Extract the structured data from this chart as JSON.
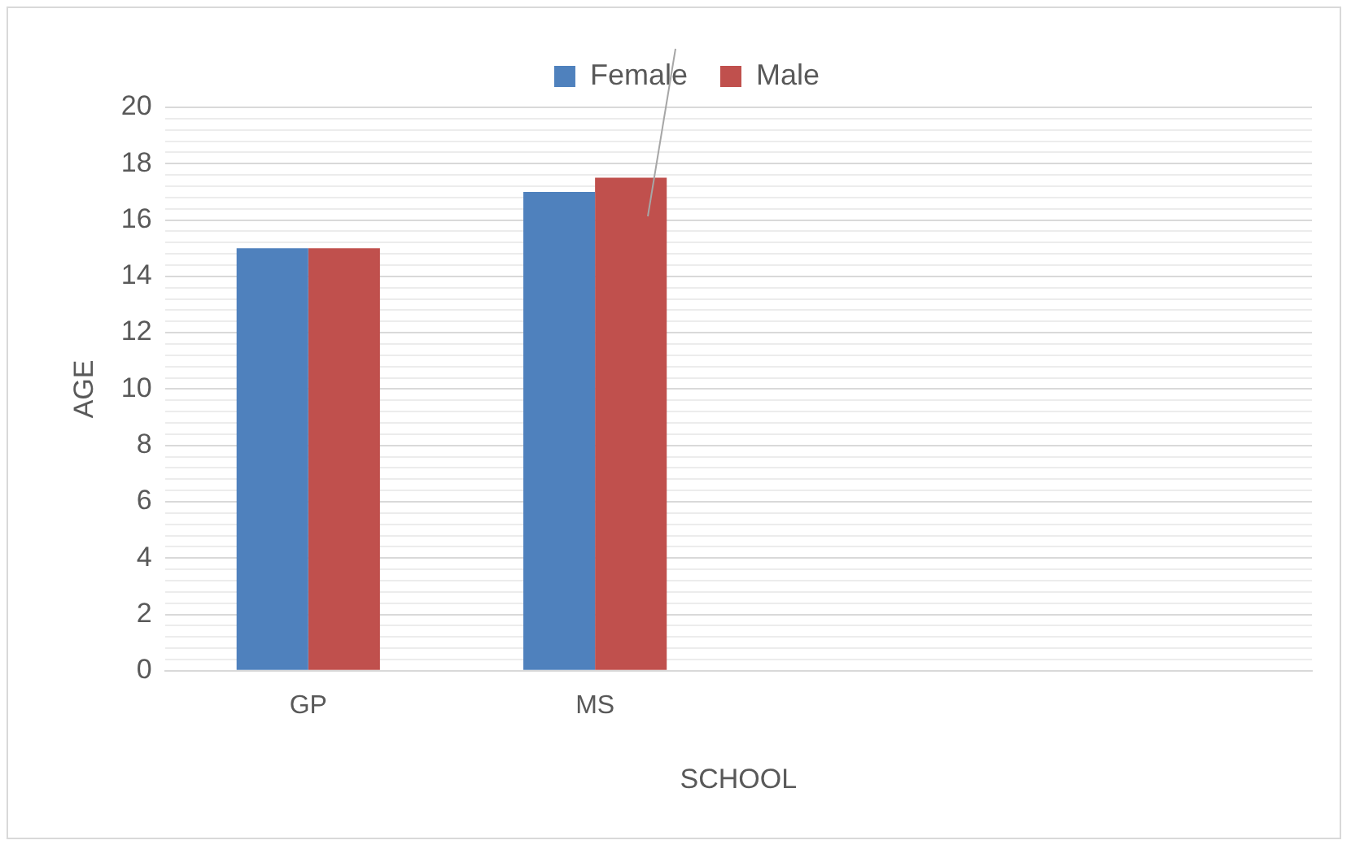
{
  "chart_data": {
    "type": "bar",
    "xlabel": "SCHOOL",
    "ylabel": "AGE",
    "categories": [
      "GP",
      "MS",
      null,
      null
    ],
    "series": [
      {
        "name": "Female",
        "color": "#4f81bd",
        "values": [
          15,
          17,
          null,
          null
        ]
      },
      {
        "name": "Male",
        "color": "#c0504d",
        "values": [
          15,
          17.5,
          null,
          null
        ]
      }
    ],
    "ylim": [
      0,
      20
    ],
    "yticks": [
      0,
      {
        "value": 0.4,
        "label": null
      },
      {
        "value": 0.8,
        "label": null
      },
      {
        "value": 1.2,
        "label": null
      },
      {
        "value": 1.6,
        "label": null
      },
      2,
      {
        "value": 2.4,
        "label": null
      },
      {
        "value": 2.8,
        "label": null
      },
      {
        "value": 3.2,
        "label": null
      },
      {
        "value": 3.6,
        "label": null
      },
      4,
      {
        "value": 4.4,
        "label": null
      },
      {
        "value": 4.8,
        "label": null
      },
      {
        "value": 5.2,
        "label": null
      },
      {
        "value": 5.6,
        "label": null
      },
      6,
      {
        "value": 6.4,
        "label": null
      },
      {
        "value": 6.8,
        "label": null
      },
      {
        "value": 7.2,
        "label": null
      },
      {
        "value": 7.6,
        "label": null
      },
      8,
      {
        "value": 8.4,
        "label": null
      },
      {
        "value": 8.8,
        "label": null
      },
      {
        "value": 9.2,
        "label": null
      },
      {
        "value": 9.6,
        "label": null
      },
      10,
      {
        "value": 10.4,
        "label": null
      },
      {
        "value": 10.8,
        "label": null
      },
      {
        "value": 11.2,
        "label": null
      },
      {
        "value": 11.6,
        "label": null
      },
      12,
      {
        "value": 12.4,
        "label": null
      },
      {
        "value": 12.8,
        "label": null
      },
      {
        "value": 13.2,
        "label": null
      },
      {
        "value": 13.6,
        "label": null
      },
      14,
      {
        "value": 14.4,
        "label": null
      },
      {
        "value": 14.8,
        "label": null
      },
      {
        "value": 15.2,
        "label": null
      },
      {
        "value": 15.6,
        "label": null
      },
      16,
      {
        "value": 16.4,
        "label": null
      },
      {
        "value": 16.8,
        "label": null
      },
      {
        "value": 17.2,
        "label": null
      },
      {
        "value": 17.6,
        "label": null
      },
      18,
      {
        "value": 18.4,
        "label": null
      },
      {
        "value": 18.8,
        "label": null
      },
      {
        "value": 19.2,
        "label": null
      },
      {
        "value": 19.6,
        "label": null
      },
      20
    ],
    "grid": "y",
    "legend": "top"
  }
}
